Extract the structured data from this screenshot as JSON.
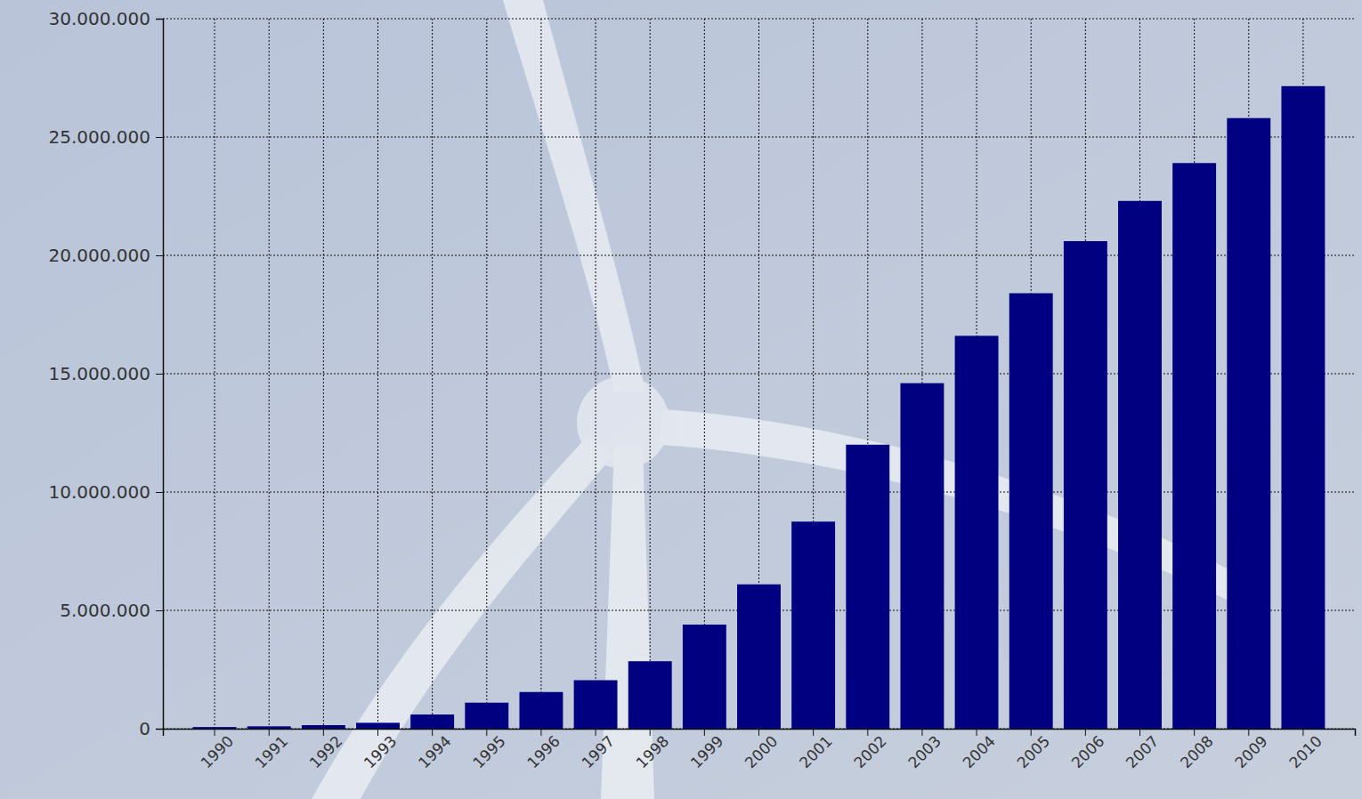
{
  "chart_data": {
    "type": "bar",
    "categories": [
      "1990",
      "1991",
      "1992",
      "1993",
      "1994",
      "1995",
      "1996",
      "1997",
      "1998",
      "1999",
      "2000",
      "2001",
      "2002",
      "2003",
      "2004",
      "2005",
      "2006",
      "2007",
      "2008",
      "2009",
      "2010"
    ],
    "values": [
      70000,
      100000,
      150000,
      250000,
      600000,
      1100000,
      1550000,
      2050000,
      2850000,
      4400000,
      6100000,
      8750000,
      12000000,
      14600000,
      16600000,
      18400000,
      20600000,
      22300000,
      23900000,
      25800000,
      27150000
    ],
    "color": "#000080",
    "ylim": [
      0,
      30000000
    ],
    "yticks": [
      0,
      {
        "value": 5000000,
        "label": "5.000.000"
      },
      {
        "value": 10000000,
        "label": "10.000.000"
      },
      {
        "value": 15000000,
        "label": "15.000.000"
      },
      {
        "value": 20000000,
        "label": "20.000.000"
      },
      {
        "value": 25000000,
        "label": "25.000.000"
      },
      {
        "value": 30000000,
        "label": "30.000.000"
      }
    ],
    "grid": true
  }
}
